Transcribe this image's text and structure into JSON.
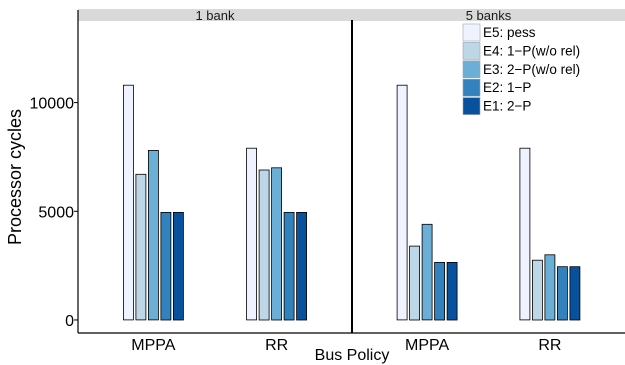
{
  "chart_data": {
    "type": "bar",
    "xlabel": "Bus Policy",
    "ylabel": "Processor cycles",
    "ylim": [
      -600,
      13800
    ],
    "yticks": [
      0,
      5000,
      10000
    ],
    "ytick_labels": [
      "0",
      "5000",
      "10000"
    ],
    "categories": [
      "MPPA",
      "RR"
    ],
    "series_names": [
      "E5: pess",
      "E4: 1−P(w/o rel)",
      "E3: 2−P(w/o rel)",
      "E2: 1−P",
      "E1: 2−P"
    ],
    "series_colors": [
      "#eff3ff",
      "#bdd7e7",
      "#6baed6",
      "#3182bd",
      "#08519c"
    ],
    "grid": false,
    "legend_position": "top-right (inside right panel)",
    "panels": [
      {
        "label": "1 bank",
        "groups": [
          {
            "category": "MPPA",
            "values": [
              10800,
              6700,
              7800,
              4950,
              4950
            ]
          },
          {
            "category": "RR",
            "values": [
              7900,
              6900,
              7000,
              4950,
              4950
            ]
          }
        ]
      },
      {
        "label": "5 banks",
        "groups": [
          {
            "category": "MPPA",
            "values": [
              10800,
              3400,
              4400,
              2650,
              2650
            ]
          },
          {
            "category": "RR",
            "values": [
              7900,
              2750,
              3000,
              2450,
              2450
            ]
          }
        ]
      }
    ]
  }
}
